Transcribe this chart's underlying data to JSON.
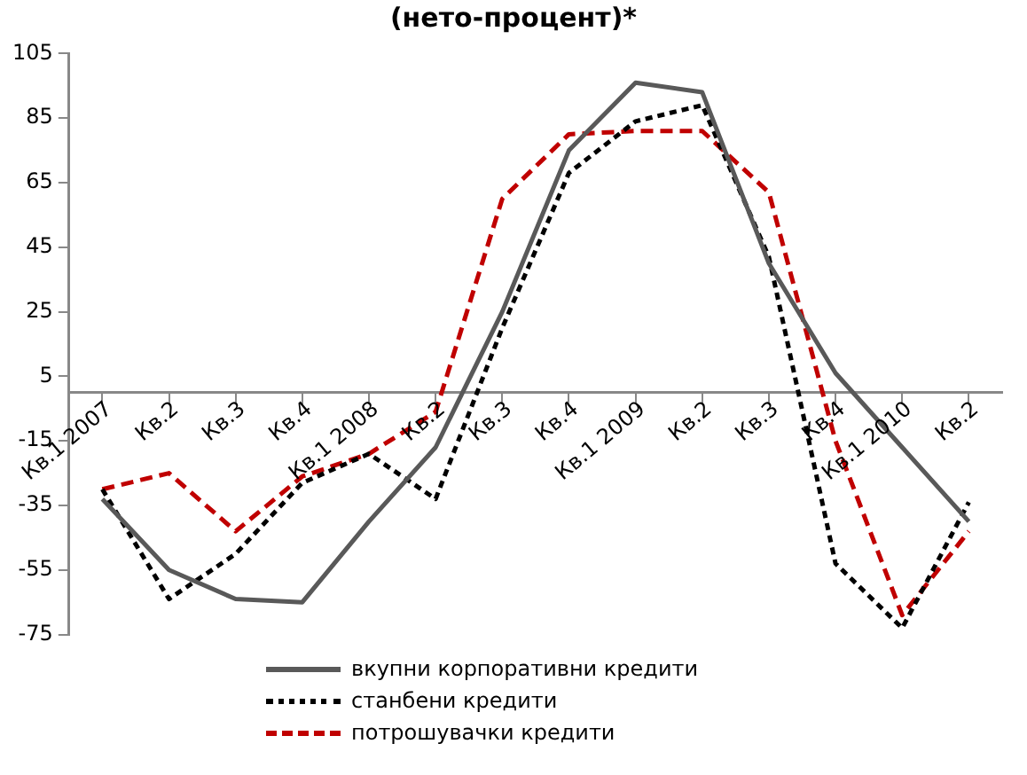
{
  "chart_data": {
    "type": "line",
    "title": "(нето-процент)*",
    "categories": [
      "Кв.1 2007",
      "Кв.2",
      "Кв.3",
      "Кв.4",
      "Кв.1 2008",
      "Кв.2",
      "Кв.3",
      "Кв.4",
      "Кв.1 2009",
      "Кв.2",
      "Кв.3",
      "Кв.4",
      "Кв.1 2010",
      "Кв.2"
    ],
    "series": [
      {
        "name": "вкупни корпоративни кредити",
        "color": "#595959",
        "line_style": "solid",
        "values": [
          -33,
          -55,
          -64,
          -65,
          -40,
          -17,
          25,
          75,
          96,
          93,
          40,
          6,
          -17,
          -40
        ]
      },
      {
        "name": "станбени кредити",
        "color": "#000000",
        "line_style": "dotted",
        "values": [
          -30,
          -64,
          -50,
          -28,
          -19,
          -33,
          20,
          68,
          84,
          89,
          42,
          -53,
          -73,
          -34
        ]
      },
      {
        "name": "потрошувачки кредити",
        "color": "#c00000",
        "line_style": "dashed",
        "values": [
          -30,
          -25,
          -43,
          -26,
          -19,
          -6,
          60,
          80,
          81,
          81,
          62,
          -15,
          -69,
          -43
        ]
      }
    ],
    "ylim": [
      -75,
      105
    ],
    "yticks": [
      -75,
      -55,
      -35,
      -15,
      5,
      25,
      45,
      65,
      85,
      105
    ],
    "grid": false,
    "legend": "bottom",
    "marker": "none"
  }
}
